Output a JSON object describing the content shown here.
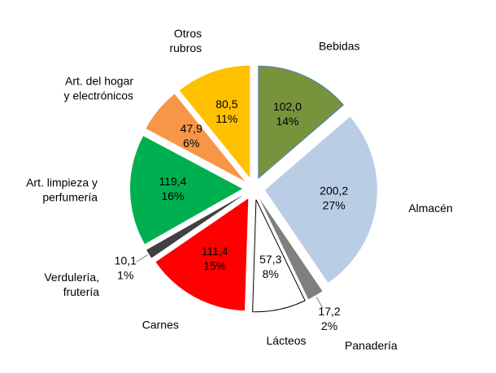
{
  "chart_data": {
    "type": "pie",
    "categories": [
      "Bebidas",
      "Almacén",
      "Panadería",
      "Lácteos",
      "Carnes",
      "Verdulería,\nfrutería",
      "Art. limpieza y\nperfumería",
      "Art. del hogar\ny electrónicos",
      "Otros\nrubros"
    ],
    "values": [
      102.0,
      200.2,
      17.2,
      57.3,
      111.4,
      10.1,
      119.4,
      47.9,
      80.5
    ],
    "value_labels": [
      "102,0",
      "200,2",
      "17,2",
      "57,3",
      "111,4",
      "10,1",
      "119,4",
      "47,9",
      "80,5"
    ],
    "percent_labels": [
      "14%",
      "27%",
      "2%",
      "8%",
      "15%",
      "1%",
      "16%",
      "6%",
      "11%"
    ],
    "colors": [
      "#77933c",
      "#b9cde5",
      "#7f7f7f",
      "#ffffff",
      "#ff0000",
      "#404040",
      "#00b050",
      "#f79646",
      "#ffc000"
    ],
    "exploded": true
  }
}
